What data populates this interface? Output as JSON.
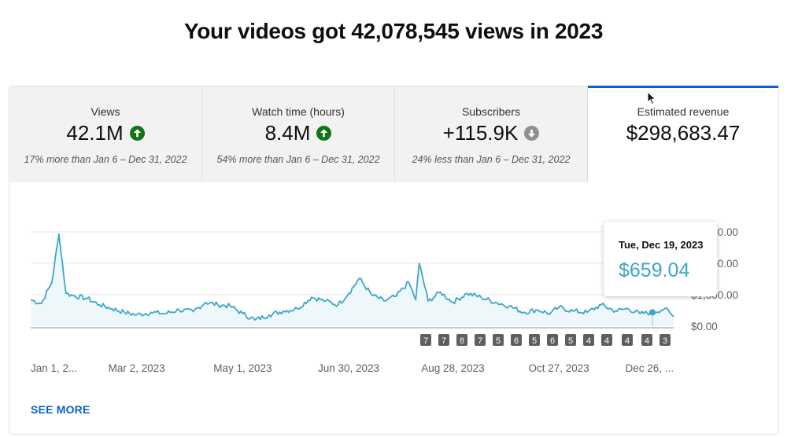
{
  "headline": "Your videos got 42,078,545 views in 2023",
  "tabs": [
    {
      "label": "Views",
      "value": "42.1M",
      "trend": "up",
      "comparison": "17% more than Jan 6 – Dec 31, 2022"
    },
    {
      "label": "Watch time (hours)",
      "value": "8.4M",
      "trend": "up",
      "comparison": "54% more than Jan 6 – Dec 31, 2022"
    },
    {
      "label": "Subscribers",
      "value": "+115.9K",
      "trend": "down",
      "comparison": "24% less than Jan 6 – Dec 31, 2022"
    },
    {
      "label": "Estimated revenue",
      "value": "$298,683.47",
      "trend": "",
      "comparison": "",
      "selected": true
    }
  ],
  "colors": {
    "accent": "#065fd4",
    "line": "#3ea6c8",
    "area": "#eef7fa",
    "up": "#107516",
    "down": "#909090"
  },
  "icons": {
    "trend_up": "arrow-up-circle-icon",
    "trend_down": "arrow-down-circle-icon"
  },
  "tooltip": {
    "date": "Tue, Dec 19, 2023",
    "value": "$659.04"
  },
  "see_more": "SEE MORE",
  "chart_data": {
    "type": "area",
    "xlabel": "",
    "ylabel": "",
    "y_tick_labels": [
      "$0.00",
      "$1,500.00",
      "$3,000.00",
      "$4,500.00"
    ],
    "y_tick_values": [
      0,
      1500,
      3000,
      4500
    ],
    "ylim": [
      0,
      4500
    ],
    "x_tick_labels": [
      "Jan 1, 2...",
      "Mar 2, 2023",
      "May 1, 2023",
      "Jun 30, 2023",
      "Aug 28, 2023",
      "Oct 27, 2023",
      "Dec 26, ..."
    ],
    "x_tick_dates": [
      "2023-01-01",
      "2023-03-02",
      "2023-05-01",
      "2023-06-30",
      "2023-08-28",
      "2023-10-27",
      "2023-12-26"
    ],
    "x_range": [
      "2023-01-01",
      "2023-12-31"
    ],
    "grid": true,
    "legend": "none",
    "series": [
      {
        "x": [
          "2023-01-01",
          "2023-01-07",
          "2023-01-13",
          "2023-01-17",
          "2023-01-21",
          "2023-01-26",
          "2023-02-02",
          "2023-02-09",
          "2023-02-16",
          "2023-02-23",
          "2023-03-02",
          "2023-03-10",
          "2023-03-18",
          "2023-03-26",
          "2023-04-03",
          "2023-04-10",
          "2023-04-17",
          "2023-04-24",
          "2023-05-01",
          "2023-05-08",
          "2023-05-16",
          "2023-05-24",
          "2023-06-01",
          "2023-06-09",
          "2023-06-17",
          "2023-06-24",
          "2023-06-30",
          "2023-07-06",
          "2023-07-13",
          "2023-07-20",
          "2023-07-27",
          "2023-08-03",
          "2023-08-07",
          "2023-08-09",
          "2023-08-14",
          "2023-08-21",
          "2023-08-28",
          "2023-09-05",
          "2023-09-13",
          "2023-09-21",
          "2023-09-29",
          "2023-10-07",
          "2023-10-15",
          "2023-10-22",
          "2023-10-27",
          "2023-11-04",
          "2023-11-12",
          "2023-11-20",
          "2023-11-28",
          "2023-12-05",
          "2023-12-12",
          "2023-12-19",
          "2023-12-26",
          "2023-12-31"
        ],
        "values": [
          1260,
          1080,
          2100,
          4400,
          1560,
          1440,
          1320,
          1020,
          840,
          660,
          540,
          660,
          600,
          780,
          690,
          1140,
          1020,
          960,
          600,
          300,
          540,
          720,
          840,
          1380,
          1200,
          1020,
          1560,
          2280,
          1500,
          1200,
          1440,
          2100,
          1260,
          3000,
          1200,
          1620,
          1140,
          1560,
          1380,
          1140,
          960,
          660,
          780,
          600,
          900,
          720,
          660,
          1020,
          720,
          840,
          600,
          659,
          840,
          450
        ]
      }
    ]
  }
}
